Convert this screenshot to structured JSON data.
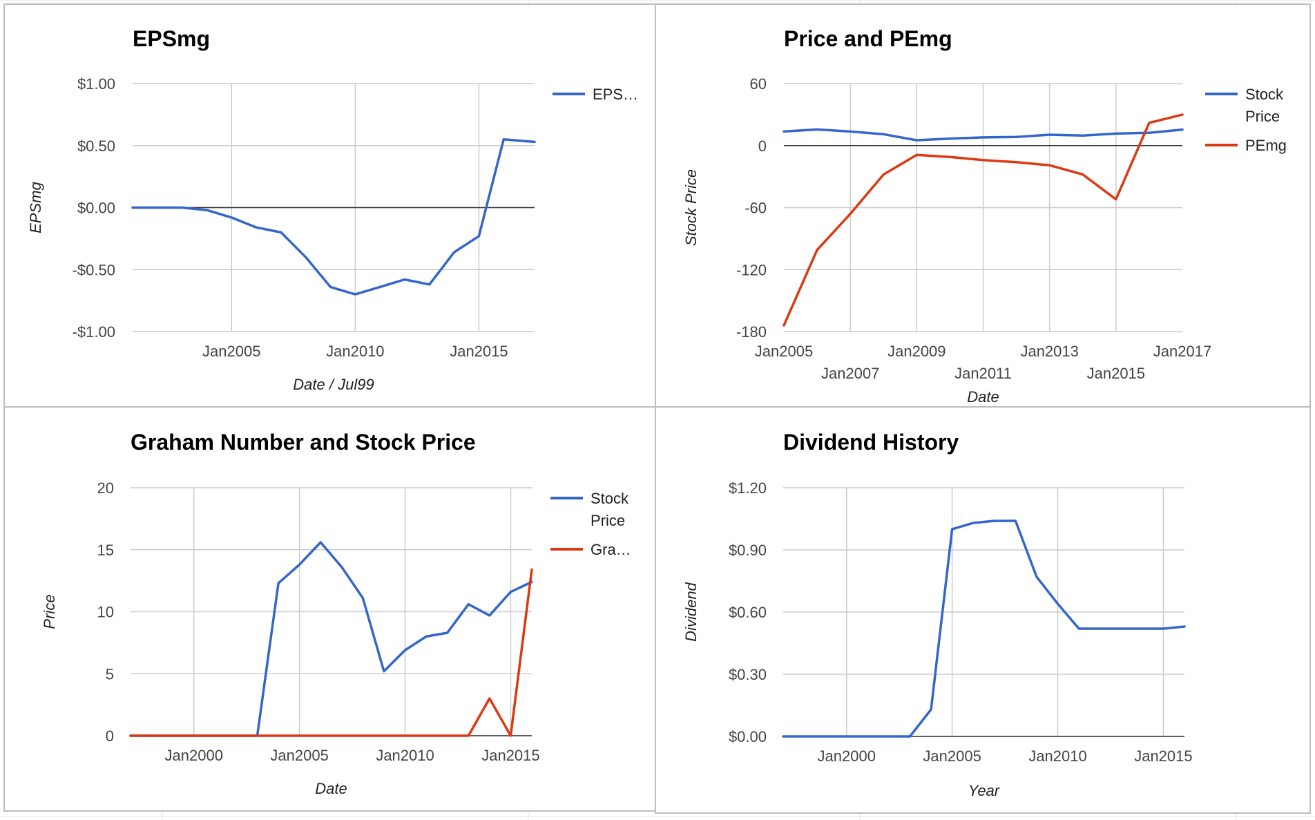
{
  "colors": {
    "blue": "#3366cc",
    "red": "#dc3912",
    "grid": "#cccccc",
    "baseline": "#333333"
  },
  "chart_data": [
    {
      "id": "epsmg",
      "type": "line",
      "title": "EPSmg",
      "xlabel": "Date / Jul99",
      "ylabel": "EPSmg",
      "xlim": [
        2001.0,
        2017.25
      ],
      "ylim": [
        -1.0,
        1.0
      ],
      "y_ticks": [
        1.0,
        0.5,
        0.0,
        -0.5,
        -1.0
      ],
      "y_tick_labels": [
        "$1.00",
        "$0.50",
        "$0.00",
        "-$0.50",
        "-$1.00"
      ],
      "x_ticks": [
        2005,
        2010,
        2015
      ],
      "x_tick_labels": [
        "Jan2005",
        "Jan2010",
        "Jan2015"
      ],
      "legend": "right",
      "series": [
        {
          "name": "EPSmg",
          "legend_label": "EPS…",
          "color": "#3366cc",
          "x": [
            2001.0,
            2002.0,
            2003.0,
            2004.0,
            2005.0,
            2006.0,
            2007.0,
            2008.0,
            2009.0,
            2010.0,
            2011.0,
            2012.0,
            2013.0,
            2014.0,
            2015.0,
            2016.0,
            2017.25
          ],
          "y": [
            0.0,
            0.0,
            0.0,
            -0.02,
            -0.08,
            -0.16,
            -0.2,
            -0.4,
            -0.64,
            -0.7,
            -0.64,
            -0.58,
            -0.62,
            -0.36,
            -0.23,
            0.55,
            0.53
          ]
        }
      ]
    },
    {
      "id": "price-pemg",
      "type": "line",
      "title": "Price and PEmg",
      "xlabel": "Date",
      "ylabel": "Stock Price",
      "xlim": [
        2005.0,
        2017.0
      ],
      "ylim": [
        -180,
        60
      ],
      "y_ticks": [
        60,
        0,
        -60,
        -120,
        -180
      ],
      "y_tick_labels": [
        "60",
        "0",
        "-60",
        "-120",
        "-180"
      ],
      "x_ticks": [
        2005,
        2007,
        2009,
        2011,
        2013,
        2015,
        2017
      ],
      "x_tick_labels": [
        "Jan2005",
        "Jan2007",
        "Jan2009",
        "Jan2011",
        "Jan2013",
        "Jan2015",
        "Jan2017"
      ],
      "legend": "right",
      "series": [
        {
          "name": "Stock Price",
          "legend_label": [
            "Stock",
            "Price"
          ],
          "color": "#3366cc",
          "x": [
            2005.0,
            2006.0,
            2007.0,
            2008.0,
            2009.0,
            2010.0,
            2011.0,
            2012.0,
            2013.0,
            2014.0,
            2015.0,
            2016.0,
            2017.0
          ],
          "y": [
            13.6,
            15.6,
            13.6,
            11.0,
            5.2,
            6.8,
            7.9,
            8.3,
            10.5,
            9.7,
            11.6,
            12.4,
            15.5
          ]
        },
        {
          "name": "PEmg",
          "legend_label": [
            "PEmg"
          ],
          "color": "#dc3912",
          "x": [
            2005.0,
            2006.0,
            2007.0,
            2008.0,
            2009.0,
            2010.0,
            2011.0,
            2012.0,
            2013.0,
            2014.0,
            2015.0,
            2016.0,
            2017.0
          ],
          "y": [
            -174,
            -101,
            -66,
            -28,
            -9,
            -11,
            -14,
            -16,
            -19,
            -28,
            -52,
            22,
            30
          ]
        }
      ]
    },
    {
      "id": "graham",
      "type": "line",
      "title": "Graham Number and Stock Price",
      "xlabel": "Date",
      "ylabel": "Price",
      "xlim": [
        1997.0,
        2016.0
      ],
      "ylim": [
        0,
        20
      ],
      "y_ticks": [
        20,
        15,
        10,
        5,
        0
      ],
      "y_tick_labels": [
        "20",
        "15",
        "10",
        "5",
        "0"
      ],
      "x_ticks": [
        2000,
        2005,
        2010,
        2015
      ],
      "x_tick_labels": [
        "Jan2000",
        "Jan2005",
        "Jan2010",
        "Jan2015"
      ],
      "legend": "right",
      "series": [
        {
          "name": "Stock Price",
          "legend_label": [
            "Stock",
            "Price"
          ],
          "color": "#3366cc",
          "x": [
            1997.0,
            1998.0,
            1999.0,
            2000.0,
            2001.0,
            2002.0,
            2003.0,
            2004.0,
            2005.0,
            2006.0,
            2007.0,
            2008.0,
            2009.0,
            2010.0,
            2011.0,
            2012.0,
            2013.0,
            2014.0,
            2015.0,
            2016.0
          ],
          "y": [
            0,
            0,
            0,
            0,
            0,
            0,
            0,
            12.3,
            13.8,
            15.6,
            13.6,
            11.1,
            5.2,
            6.9,
            8.0,
            8.3,
            10.6,
            9.7,
            11.6,
            12.4
          ]
        },
        {
          "name": "Graham Number",
          "legend_label": [
            "Gra…"
          ],
          "color": "#dc3912",
          "x": [
            1997.0,
            1998.0,
            1999.0,
            2000.0,
            2001.0,
            2002.0,
            2003.0,
            2004.0,
            2005.0,
            2006.0,
            2007.0,
            2008.0,
            2009.0,
            2010.0,
            2011.0,
            2012.0,
            2013.0,
            2014.0,
            2015.0,
            2016.0
          ],
          "y": [
            0,
            0,
            0,
            0,
            0,
            0,
            0,
            0,
            0,
            0,
            0,
            0,
            0,
            0,
            0,
            0,
            0,
            3.0,
            0,
            13.4
          ]
        }
      ]
    },
    {
      "id": "dividend",
      "type": "line",
      "title": "Dividend History",
      "xlabel": "Year",
      "ylabel": "Dividend",
      "xlim": [
        1997.0,
        2016.0
      ],
      "ylim": [
        0.0,
        1.2
      ],
      "y_ticks": [
        1.2,
        0.9,
        0.6,
        0.3,
        0.0
      ],
      "y_tick_labels": [
        "$1.20",
        "$0.90",
        "$0.60",
        "$0.30",
        "$0.00"
      ],
      "x_ticks": [
        2000,
        2005,
        2010,
        2015
      ],
      "x_tick_labels": [
        "Jan2000",
        "Jan2005",
        "Jan2010",
        "Jan2015"
      ],
      "legend": "none",
      "series": [
        {
          "name": "Dividend",
          "color": "#3366cc",
          "x": [
            1997.0,
            1998.0,
            1999.0,
            2000.0,
            2001.0,
            2002.0,
            2003.0,
            2004.0,
            2005.0,
            2006.0,
            2007.0,
            2008.0,
            2009.0,
            2010.0,
            2011.0,
            2012.0,
            2013.0,
            2014.0,
            2015.0,
            2016.0
          ],
          "y": [
            0,
            0,
            0,
            0,
            0,
            0,
            0,
            0.13,
            1.0,
            1.03,
            1.04,
            1.04,
            0.77,
            0.64,
            0.52,
            0.52,
            0.52,
            0.52,
            0.52,
            0.53
          ]
        }
      ]
    }
  ]
}
